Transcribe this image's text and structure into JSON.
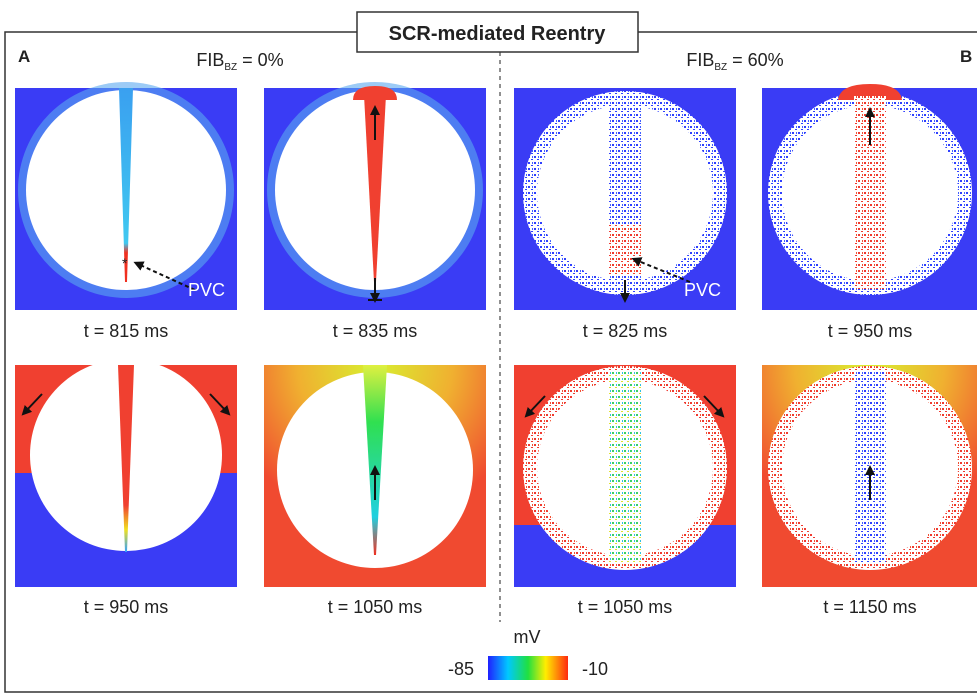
{
  "title": "SCR-mediated Reentry",
  "panels": [
    {
      "label": "A",
      "condition": {
        "name": "FIB",
        "subscript": "BZ",
        "value": " = 0%"
      },
      "frames": [
        {
          "time": "t = 815 ms",
          "annotation": "PVC"
        },
        {
          "time": "t = 835 ms"
        },
        {
          "time": "t = 950 ms"
        },
        {
          "time": "t = 1050 ms"
        }
      ]
    },
    {
      "label": "B",
      "condition": {
        "name": "FIB",
        "subscript": "BZ",
        "value": " = 60%"
      },
      "frames": [
        {
          "time": "t = 825 ms",
          "annotation": "PVC"
        },
        {
          "time": "t = 950 ms"
        },
        {
          "time": "t = 1050 ms"
        },
        {
          "time": "t = 1150 ms"
        }
      ]
    }
  ],
  "colorbar": {
    "unit": "mV",
    "min": -85,
    "max": -10
  }
}
